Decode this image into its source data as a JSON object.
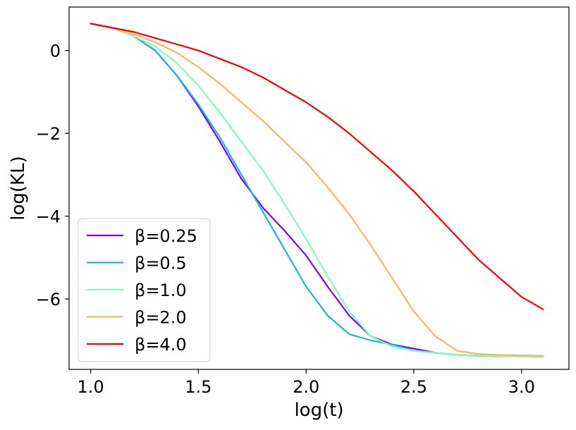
{
  "chart_data": {
    "type": "line",
    "title": "",
    "xlabel": "log(t)",
    "ylabel": "log(KL)",
    "xlim": [
      0.9,
      3.22
    ],
    "ylim": [
      -7.7,
      1.05
    ],
    "xticks": [
      1.0,
      1.5,
      2.0,
      2.5,
      3.0
    ],
    "xtick_labels": [
      "1.0",
      "1.5",
      "2.0",
      "2.5",
      "3.0"
    ],
    "yticks": [
      0,
      -2,
      -4,
      -6
    ],
    "ytick_labels": [
      "0",
      "−2",
      "−4",
      "−6"
    ],
    "grid": false,
    "legend_position": "lower-left",
    "series": [
      {
        "name": "β=0.25",
        "color": "#8000ff",
        "x": [
          1.0,
          1.1,
          1.2,
          1.3,
          1.4,
          1.5,
          1.6,
          1.7,
          1.8,
          1.9,
          2.0,
          2.1,
          2.2,
          2.3,
          2.4,
          2.5,
          2.6,
          2.7,
          2.8,
          2.9,
          3.0,
          3.1
        ],
        "y": [
          0.65,
          0.55,
          0.35,
          0.0,
          -0.6,
          -1.35,
          -2.2,
          -3.1,
          -3.8,
          -4.35,
          -4.95,
          -5.7,
          -6.4,
          -6.9,
          -7.1,
          -7.2,
          -7.3,
          -7.35,
          -7.37,
          -7.38,
          -7.38,
          -7.39
        ]
      },
      {
        "name": "β=0.5",
        "color": "#1ab2ec",
        "x": [
          1.0,
          1.1,
          1.2,
          1.3,
          1.4,
          1.5,
          1.6,
          1.7,
          1.8,
          1.9,
          2.0,
          2.1,
          2.2,
          2.3,
          2.4,
          2.5,
          2.6,
          2.7,
          2.8,
          2.9,
          3.0,
          3.1
        ],
        "y": [
          0.65,
          0.55,
          0.35,
          0.0,
          -0.6,
          -1.3,
          -2.1,
          -3.0,
          -3.9,
          -4.8,
          -5.7,
          -6.4,
          -6.85,
          -7.0,
          -7.1,
          -7.25,
          -7.3,
          -7.35,
          -7.37,
          -7.38,
          -7.39,
          -7.4
        ]
      },
      {
        "name": "β=1.0",
        "color": "#80ffb4",
        "x": [
          1.0,
          1.1,
          1.2,
          1.3,
          1.4,
          1.5,
          1.6,
          1.7,
          1.8,
          1.9,
          2.0,
          2.1,
          2.2,
          2.3,
          2.4,
          2.5,
          2.6,
          2.7,
          2.8,
          2.9,
          3.0,
          3.1
        ],
        "y": [
          0.65,
          0.55,
          0.35,
          0.1,
          -0.3,
          -0.85,
          -1.5,
          -2.2,
          -2.9,
          -3.7,
          -4.55,
          -5.45,
          -6.3,
          -6.9,
          -7.15,
          -7.25,
          -7.3,
          -7.35,
          -7.37,
          -7.38,
          -7.39,
          -7.4
        ]
      },
      {
        "name": "β=2.0",
        "color": "#ffb360",
        "x": [
          1.0,
          1.1,
          1.2,
          1.3,
          1.4,
          1.5,
          1.6,
          1.7,
          1.8,
          1.9,
          2.0,
          2.1,
          2.2,
          2.3,
          2.4,
          2.5,
          2.6,
          2.7,
          2.8,
          2.9,
          3.0,
          3.1
        ],
        "y": [
          0.65,
          0.55,
          0.4,
          0.2,
          -0.05,
          -0.4,
          -0.8,
          -1.25,
          -1.7,
          -2.2,
          -2.7,
          -3.3,
          -3.95,
          -4.7,
          -5.5,
          -6.3,
          -6.9,
          -7.25,
          -7.33,
          -7.35,
          -7.36,
          -7.37
        ]
      },
      {
        "name": "β=4.0",
        "color": "#ff0000",
        "x": [
          1.0,
          1.1,
          1.2,
          1.3,
          1.4,
          1.5,
          1.6,
          1.7,
          1.8,
          1.9,
          2.0,
          2.1,
          2.2,
          2.3,
          2.4,
          2.5,
          2.6,
          2.7,
          2.8,
          2.9,
          3.0,
          3.1
        ],
        "y": [
          0.65,
          0.55,
          0.45,
          0.3,
          0.15,
          0.0,
          -0.2,
          -0.4,
          -0.65,
          -0.95,
          -1.25,
          -1.6,
          -2.0,
          -2.45,
          -2.9,
          -3.4,
          -3.95,
          -4.5,
          -5.05,
          -5.5,
          -5.95,
          -6.25
        ]
      }
    ]
  }
}
